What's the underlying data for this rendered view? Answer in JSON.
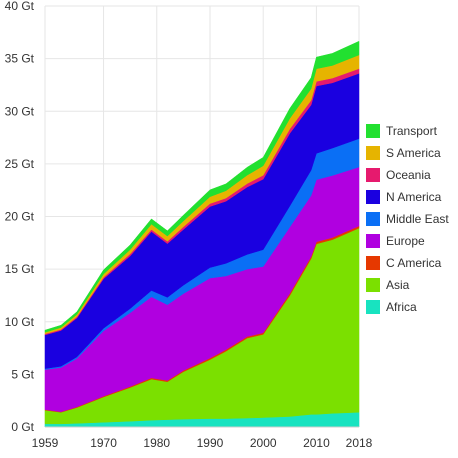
{
  "chart_data": {
    "type": "area",
    "stacked": true,
    "x": [
      1959,
      1962,
      1965,
      1970,
      1975,
      1979,
      1982,
      1985,
      1990,
      1993,
      1997,
      2000,
      2005,
      2009,
      2010,
      2013,
      2018
    ],
    "xticks": [
      "1959",
      "1970",
      "1980",
      "1990",
      "2000",
      "2010",
      "2018"
    ],
    "yticks": [
      "0 Gt",
      "5 Gt",
      "10 Gt",
      "15 Gt",
      "20 Gt",
      "25 Gt",
      "30 Gt",
      "35 Gt",
      "40 Gt"
    ],
    "ylim": [
      0,
      40
    ],
    "unit": "Gt",
    "grid": true,
    "legend_position": "right",
    "series": [
      {
        "name": "Africa",
        "color": "#18e3c0",
        "values": [
          0.3,
          0.3,
          0.35,
          0.45,
          0.55,
          0.65,
          0.7,
          0.75,
          0.8,
          0.8,
          0.85,
          0.9,
          1.0,
          1.2,
          1.2,
          1.3,
          1.4
        ]
      },
      {
        "name": "Asia",
        "color": "#7be000",
        "values": [
          1.3,
          1.1,
          1.5,
          2.4,
          3.2,
          3.9,
          3.6,
          4.5,
          5.6,
          6.4,
          7.6,
          7.9,
          11.5,
          14.8,
          16.2,
          16.5,
          17.5
        ]
      },
      {
        "name": "C America",
        "color": "#e63800",
        "values": [
          0.05,
          0.05,
          0.06,
          0.08,
          0.1,
          0.12,
          0.12,
          0.12,
          0.15,
          0.15,
          0.15,
          0.15,
          0.2,
          0.2,
          0.2,
          0.2,
          0.2
        ]
      },
      {
        "name": "Europe",
        "color": "#b000e0",
        "values": [
          3.8,
          4.2,
          4.6,
          6.2,
          7.0,
          7.7,
          7.2,
          7.3,
          7.6,
          7.0,
          6.4,
          6.3,
          6.3,
          5.8,
          5.9,
          5.9,
          5.6
        ]
      },
      {
        "name": "Middle East",
        "color": "#0a6ff5",
        "values": [
          0.1,
          0.12,
          0.15,
          0.25,
          0.4,
          0.6,
          0.7,
          0.8,
          1.0,
          1.2,
          1.4,
          1.6,
          2.0,
          2.4,
          2.5,
          2.6,
          2.7
        ]
      },
      {
        "name": "N America",
        "color": "#1a00e0",
        "values": [
          3.2,
          3.4,
          3.7,
          4.7,
          5.0,
          5.6,
          5.1,
          5.3,
          5.8,
          5.9,
          6.4,
          6.7,
          6.9,
          6.2,
          6.4,
          6.2,
          6.2
        ]
      },
      {
        "name": "Oceania",
        "color": "#e61a6e",
        "values": [
          0.1,
          0.1,
          0.12,
          0.15,
          0.2,
          0.2,
          0.22,
          0.25,
          0.28,
          0.3,
          0.33,
          0.37,
          0.42,
          0.44,
          0.44,
          0.45,
          0.45
        ]
      },
      {
        "name": "S America",
        "color": "#e6b400",
        "values": [
          0.15,
          0.18,
          0.22,
          0.3,
          0.4,
          0.5,
          0.5,
          0.55,
          0.65,
          0.7,
          0.8,
          0.9,
          1.0,
          1.1,
          1.2,
          1.2,
          1.3
        ]
      },
      {
        "name": "Transport",
        "color": "#22e030",
        "values": [
          0.2,
          0.22,
          0.25,
          0.4,
          0.45,
          0.5,
          0.5,
          0.55,
          0.65,
          0.65,
          0.75,
          0.8,
          0.95,
          1.05,
          1.1,
          1.15,
          1.3
        ]
      }
    ],
    "legend_order": [
      "Transport",
      "S America",
      "Oceania",
      "N America",
      "Middle East",
      "Europe",
      "C America",
      "Asia",
      "Africa"
    ]
  }
}
